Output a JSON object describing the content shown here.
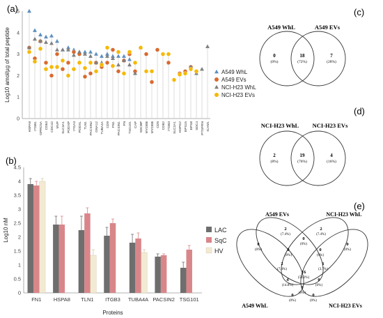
{
  "panel_labels": {
    "a": "(a)",
    "b": "(b)",
    "c": "(c)",
    "d": "(d)",
    "e": "(e)"
  },
  "chart_data": [
    {
      "type": "scatter",
      "panel": "(a)",
      "ylabel": "Log10 amol/µg of total peptide",
      "xlabel": "",
      "ylim": [
        0,
        5
      ],
      "yticks": [
        "0",
        "1",
        "2",
        "3",
        "4",
        "5"
      ],
      "grid": false,
      "legend_position": "right",
      "categories": [
        "HSPA8",
        "ITGB1",
        "GPRC5A",
        "CD63",
        "CDC42",
        "MVP",
        "SLC3A1",
        "PODXP",
        "ITGA3",
        "PODXL",
        "TLN1",
        "PACSIN2",
        "GNA12",
        "TUBA4A",
        "CD9",
        "FN1",
        "PACSIN1",
        "FN",
        "TSG101",
        "CAP",
        "SDCBP",
        "MYOEB",
        "MYOEB",
        "CD9",
        "CD82",
        "ITGB3",
        "SLC2A1",
        "HSPG2",
        "EPS15",
        "EPS8",
        "SDC4",
        "PTGFRN",
        "ICAM1"
      ],
      "series": [
        {
          "name": "A549 WhL",
          "color": "#5f8fbf",
          "marker": "triangle",
          "values": [
            5.0,
            4.1,
            3.9,
            3.8,
            3.85,
            3.6,
            3.2,
            3.3,
            3.2,
            3.1,
            3.1,
            3.1,
            3.0,
            2.9,
            3.0,
            2.9,
            2.9,
            2.9,
            2.75,
            null,
            null,
            null,
            null,
            null,
            null,
            null,
            null,
            null,
            null,
            null,
            null,
            null,
            null
          ]
        },
        {
          "name": "A549 EVs",
          "color": "#d96a2e",
          "marker": "circle",
          "values": [
            3.3,
            2.8,
            3.6,
            2.6,
            2.0,
            3.0,
            2.3,
            2.6,
            3.1,
            3.0,
            1.95,
            2.1,
            2.6,
            2.4,
            2.6,
            3.2,
            2.2,
            2.7,
            3.0,
            2.2,
            null,
            3.0,
            1.7,
            3.2,
            null,
            2.6,
            null,
            2.1,
            2.2,
            2.4,
            2.2,
            null,
            null
          ]
        },
        {
          "name": "NCI-H23 WhL",
          "color": "#808080",
          "marker": "triangle",
          "values": [
            3.3,
            3.7,
            3.6,
            3.55,
            3.5,
            3.2,
            3.2,
            3.2,
            2.95,
            3.1,
            3.0,
            2.9,
            2.6,
            2.6,
            2.9,
            2.8,
            2.5,
            2.7,
            2.5,
            2.1,
            3.3,
            null,
            null,
            null,
            null,
            null,
            null,
            null,
            null,
            2.4,
            2.1,
            2.3,
            3.35
          ]
        },
        {
          "name": "NCI-H23 EVs",
          "color": "#f5b800",
          "marker": "circle",
          "values": [
            3.1,
            2.65,
            3.25,
            2.3,
            2.4,
            2.4,
            2.7,
            2.0,
            2.3,
            2.6,
            2.35,
            2.6,
            2.2,
            2.5,
            3.3,
            2.45,
            3.1,
            2.1,
            3.1,
            2.6,
            3.3,
            2.2,
            2.2,
            null,
            3.0,
            3.0,
            1.8,
            2.05,
            2.1,
            2.3,
            2.2,
            null,
            null
          ]
        }
      ]
    },
    {
      "type": "bar",
      "panel": "(b)",
      "ylabel": "Log10 nM",
      "xlabel": "Proteins",
      "ylim": [
        0,
        4.5
      ],
      "yticks": [
        "0",
        "0.5",
        "1",
        "1.5",
        "2",
        "2.5",
        "3",
        "3.5",
        "4",
        "4.5"
      ],
      "grid": false,
      "legend_position": "right",
      "categories": [
        "FN1",
        "HSPA8",
        "TLN1",
        "ITGB3",
        "TUBA4A",
        "PACSIN2",
        "TSG101"
      ],
      "series": [
        {
          "name": "LAC",
          "color": "#6e6e6e",
          "values": [
            3.9,
            2.45,
            2.25,
            2.05,
            1.8,
            1.3,
            0.9
          ],
          "errors": [
            0.2,
            0.3,
            0.5,
            0.3,
            0.3,
            0.1,
            0.2
          ]
        },
        {
          "name": "SqC",
          "color": "#d9868a",
          "values": [
            3.85,
            2.45,
            2.85,
            2.5,
            1.95,
            1.35,
            1.55
          ],
          "errors": [
            0.15,
            0.3,
            0.2,
            0.15,
            0.2,
            0.05,
            0.15
          ]
        },
        {
          "name": "HV",
          "color": "#f2ead2",
          "values": [
            4.0,
            null,
            1.35,
            null,
            1.45,
            null,
            null
          ],
          "errors": [
            0.1,
            null,
            0.2,
            null,
            0.1,
            null,
            null
          ]
        }
      ]
    }
  ],
  "venn_c": {
    "left_title": "A549 WhL",
    "right_title": "A549 EVs",
    "left_only": {
      "n": "0",
      "pct": "(0%)"
    },
    "both": {
      "n": "18",
      "pct": "(72%)"
    },
    "right_only": {
      "n": "7",
      "pct": "(28%)"
    }
  },
  "venn_d": {
    "left_title": "NCI-H23 WhL",
    "right_title": "NCI-H23 EVs",
    "left_only": {
      "n": "2",
      "pct": "(8%)"
    },
    "both": {
      "n": "19",
      "pct": "(76%)"
    },
    "right_only": {
      "n": "4",
      "pct": "(16%)"
    }
  },
  "venn_e": {
    "titles": {
      "tl": "A549 EVs",
      "tr": "NCI-H23 WhL",
      "bl": "A549 WhL",
      "br": "NCI-H23 EVs"
    },
    "regions": [
      {
        "n": "2",
        "pct": "(7.4%)"
      },
      {
        "n": "2",
        "pct": "(7.4%)"
      },
      {
        "n": "0",
        "pct": "(0%)"
      },
      {
        "n": "0",
        "pct": "(0%)"
      },
      {
        "n": "0",
        "pct": "(0%)"
      },
      {
        "n": "0",
        "pct": "(0%)"
      },
      {
        "n": "0",
        "pct": "(0%)"
      },
      {
        "n": "2",
        "pct": "(7.4%)"
      },
      {
        "n": "1",
        "pct": "(3.7%)"
      },
      {
        "n": "16",
        "pct": "(59.3%)"
      },
      {
        "n": "4",
        "pct": "(14.8%)"
      },
      {
        "n": "0",
        "pct": "(0%)"
      },
      {
        "n": "0",
        "pct": "(0%)"
      },
      {
        "n": "0",
        "pct": "(0%)"
      },
      {
        "n": "0",
        "pct": "(0%)"
      }
    ]
  }
}
